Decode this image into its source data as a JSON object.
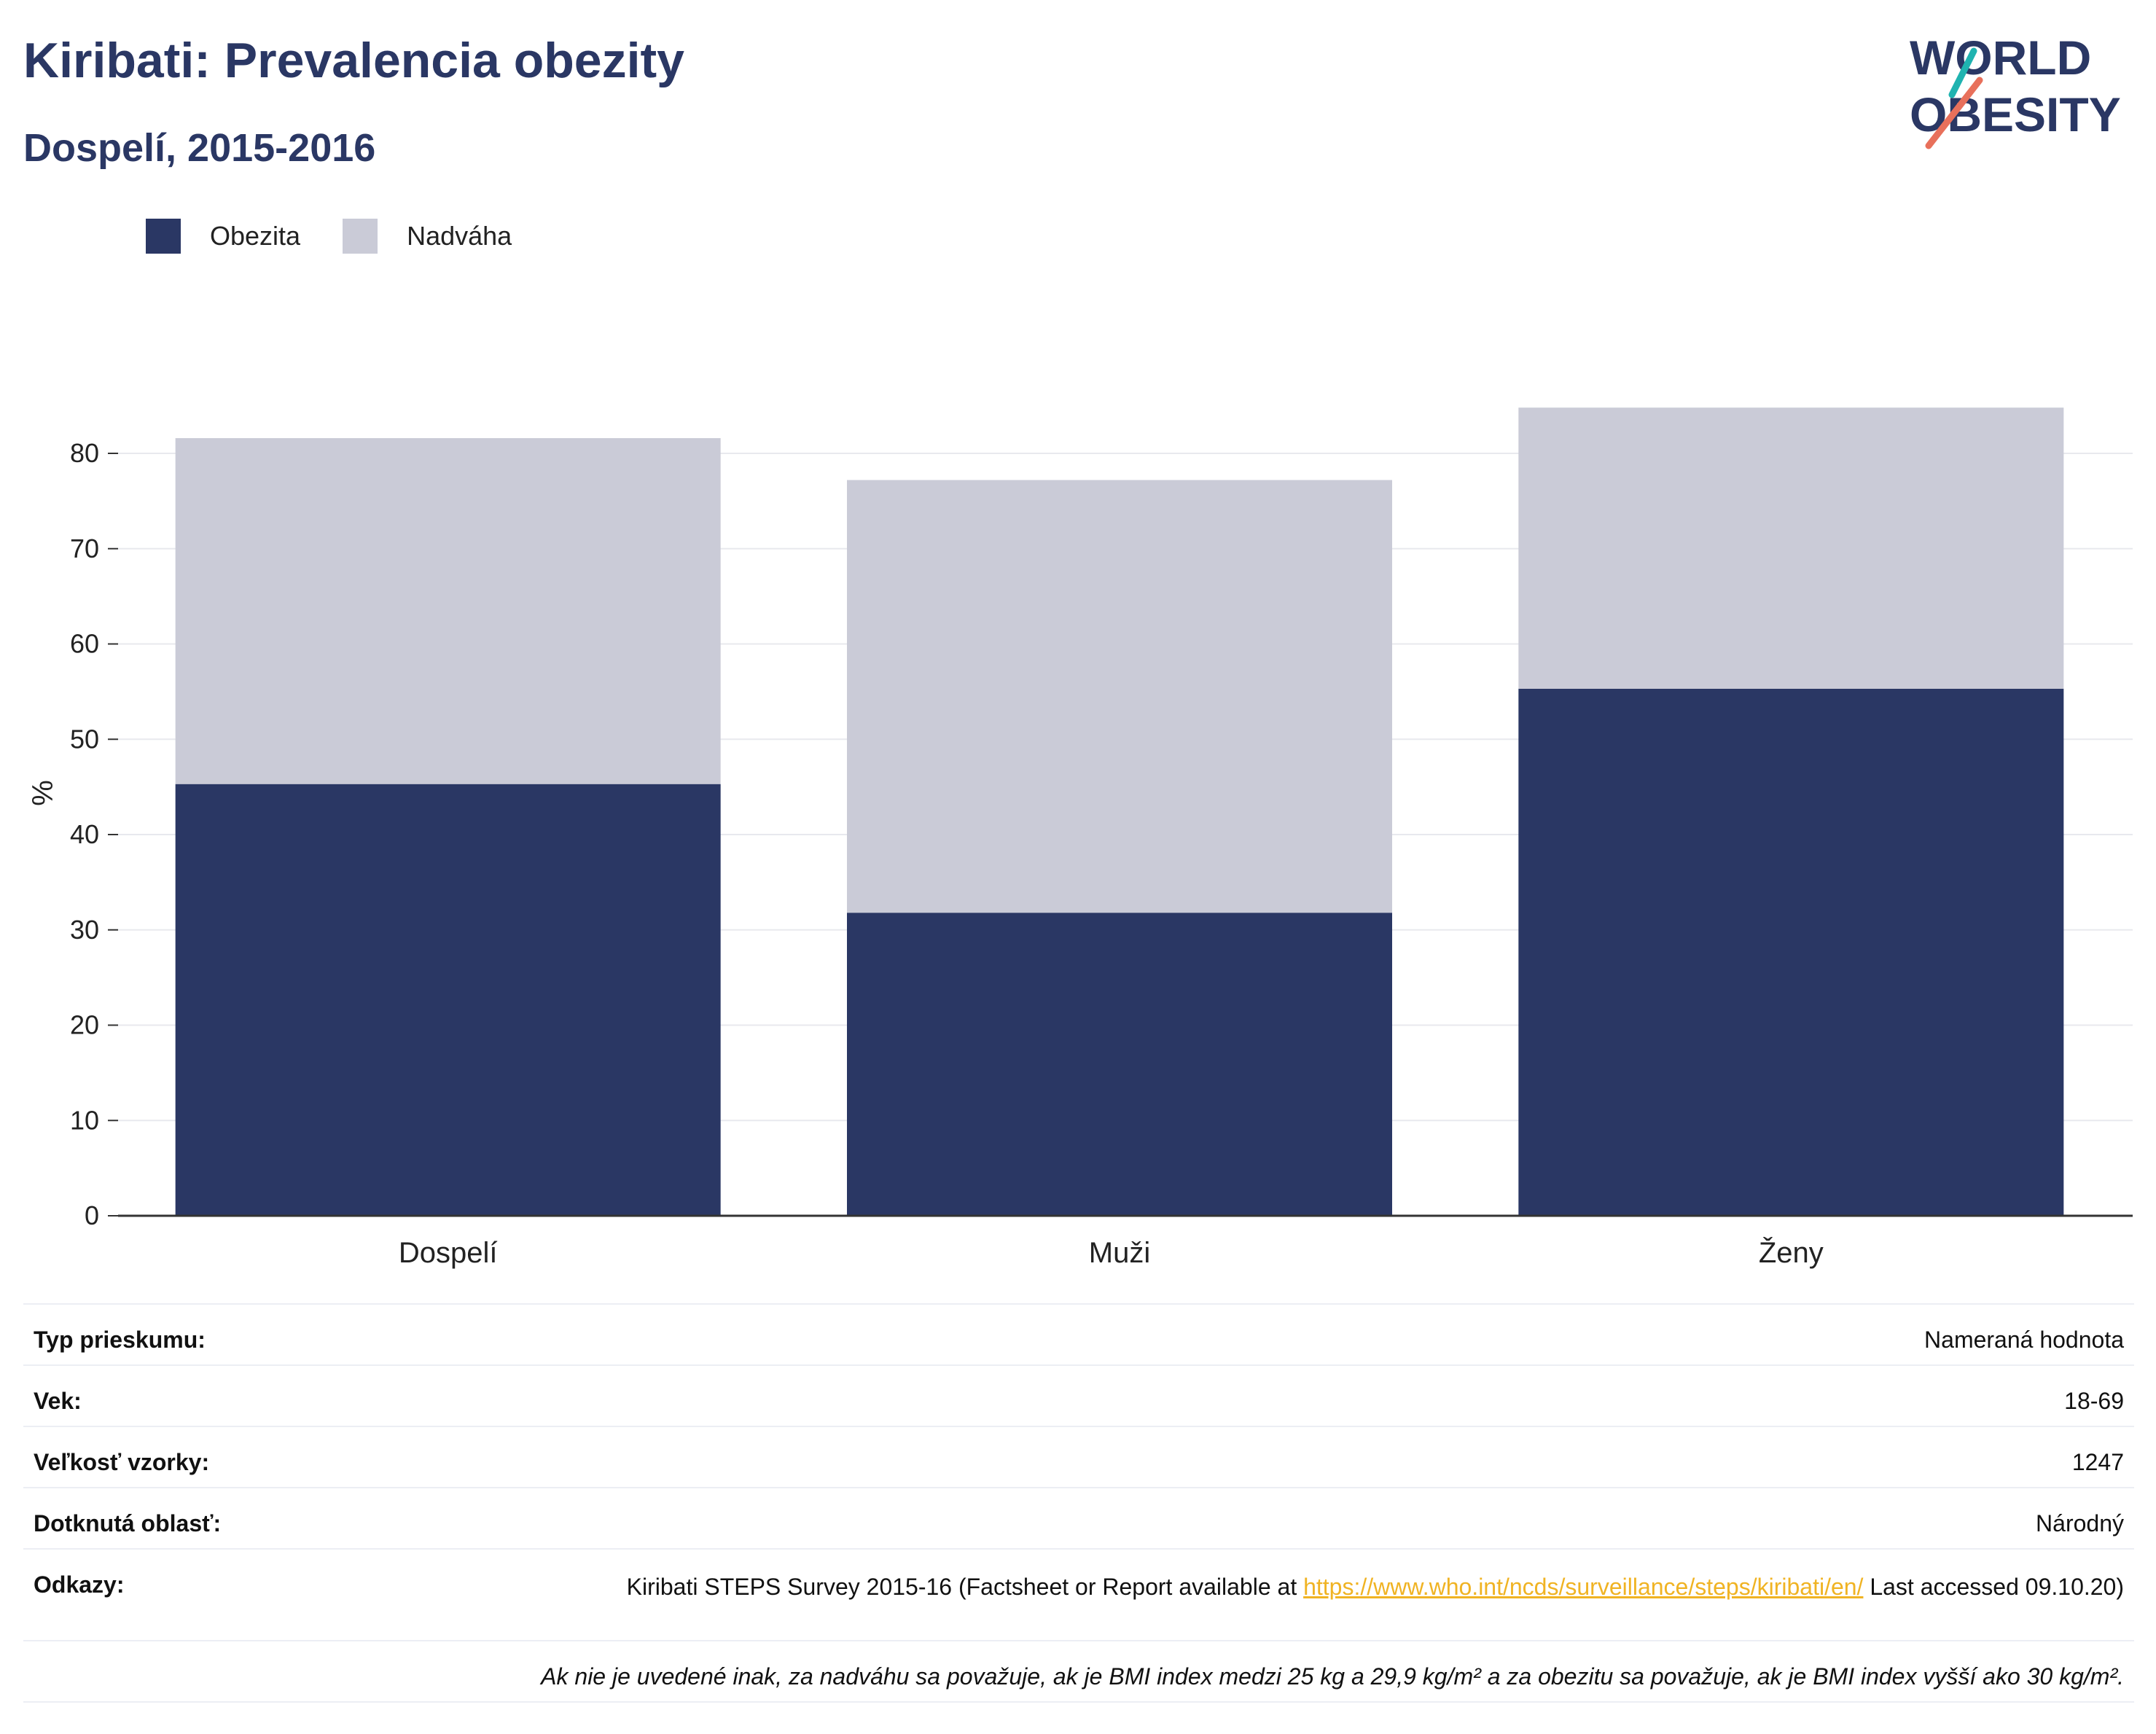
{
  "title": "Kiribati: Prevalencia obezity",
  "subtitle": "Dospelí, 2015-2016",
  "logo": {
    "line1": "WORLD",
    "line2": "OBESITY"
  },
  "colors": {
    "obesity": "#2a3764",
    "overweight": "#cacbd7",
    "title": "#2a3764",
    "link": "#f0b323"
  },
  "chart_data": {
    "type": "bar",
    "stacked": true,
    "categories": [
      "Dospelí",
      "Muži",
      "Ženy"
    ],
    "series": [
      {
        "name": "Obezita",
        "values": [
          45.3,
          31.8,
          55.3
        ],
        "color": "#2a3764"
      },
      {
        "name": "Nadváha",
        "values": [
          36.3,
          45.4,
          29.5
        ],
        "color": "#cacbd7"
      }
    ],
    "ylabel": "%",
    "ylim": [
      0,
      90
    ],
    "yticks": [
      0,
      10,
      20,
      30,
      40,
      50,
      60,
      70,
      80
    ],
    "grid": true,
    "legend": "top-left"
  },
  "details": {
    "survey_type": {
      "label": "Typ prieskumu:",
      "value": "Nameraná hodnota"
    },
    "age": {
      "label": "Vek:",
      "value": "18-69"
    },
    "sample": {
      "label": "Veľkosť vzorky:",
      "value": "1247"
    },
    "area": {
      "label": "Dotknutá oblasť:",
      "value": "Národný"
    },
    "refs": {
      "label": "Odkazy:",
      "text_before": "Kiribati STEPS Survey 2015-16 (Factsheet or Report available at ",
      "link": "https://www.who.int/ncds/surveillance/steps/kiribati/en/",
      "text_after": " Last accessed 09.10.20)"
    },
    "note": "Ak nie je uvedené inak, za nadváhu sa považuje, ak je BMI index medzi 25 kg a 29,9 kg/m² a za obezitu sa považuje, ak je BMI index vyšší ako 30 kg/m²."
  }
}
